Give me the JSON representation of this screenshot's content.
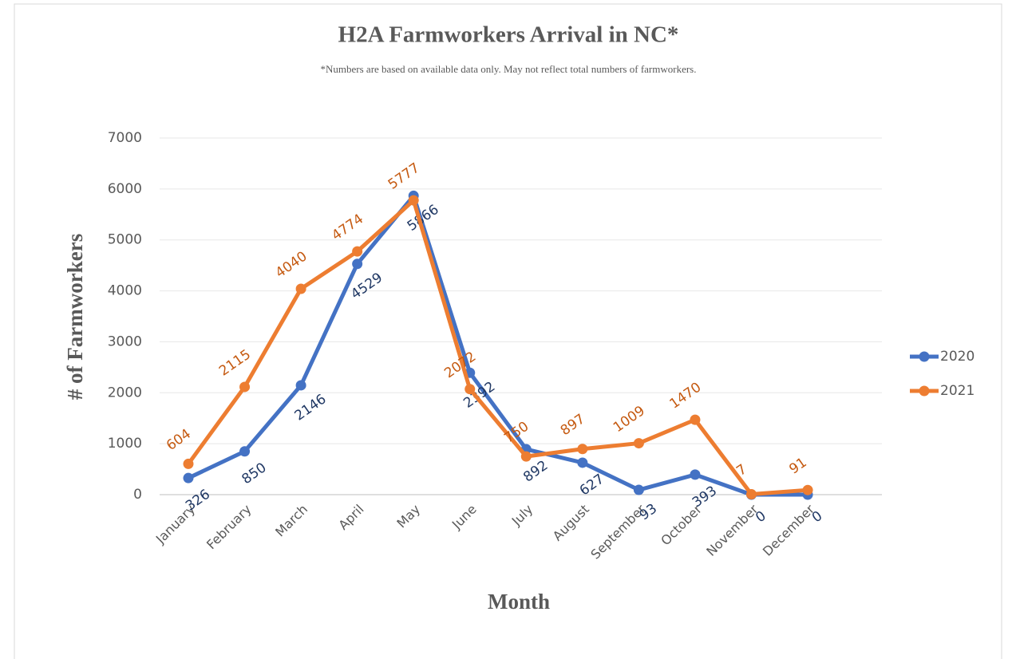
{
  "chart_data": {
    "type": "line",
    "title": "H2A Farmworkers Arrival in NC*",
    "subtitle": "*Numbers are based on available data only. May not reflect total numbers of farmworkers.",
    "x_label": "Month",
    "y_label": "# of Farmworkers",
    "categories": [
      "January",
      "February",
      "March",
      "April",
      "May",
      "June",
      "July",
      "August",
      "September",
      "October",
      "November",
      "December"
    ],
    "series": [
      {
        "name": "2020",
        "color": "#4472c4",
        "label_color": "#203864",
        "values": [
          326,
          850,
          2146,
          4529,
          5866,
          2392,
          892,
          627,
          93,
          393,
          0,
          0
        ]
      },
      {
        "name": "2021",
        "color": "#ed7d31",
        "label_color": "#c55a11",
        "values": [
          604,
          2115,
          4040,
          4774,
          5777,
          2072,
          750,
          897,
          1009,
          1470,
          7,
          91
        ]
      }
    ],
    "ylim": [
      0,
      7000
    ],
    "yticks": [
      0,
      1000,
      2000,
      3000,
      4000,
      5000,
      6000,
      7000
    ],
    "grid": true,
    "legend": "right"
  }
}
